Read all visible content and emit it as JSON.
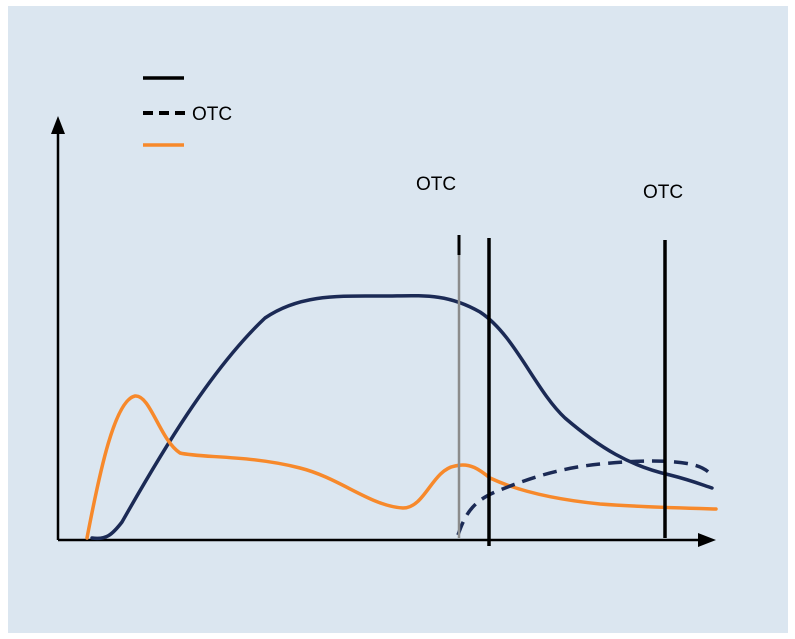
{
  "legend": {
    "items": [
      {
        "key": "solid",
        "label": "",
        "color": "#000000"
      },
      {
        "key": "dashed",
        "label": "OTC",
        "color": "#000000"
      },
      {
        "key": "orange",
        "label": "",
        "color": "#f7892b"
      }
    ]
  },
  "markers": [
    {
      "key": "first",
      "label": "OTC"
    },
    {
      "key": "second",
      "label": "OTC"
    }
  ],
  "colors": {
    "background": "#dbe6f0",
    "navy_curve": "#1b2a55",
    "orange_curve": "#f7892b",
    "gray_marker": "#8c8c8c",
    "black_marker": "#000000",
    "axes": "#000000"
  }
}
